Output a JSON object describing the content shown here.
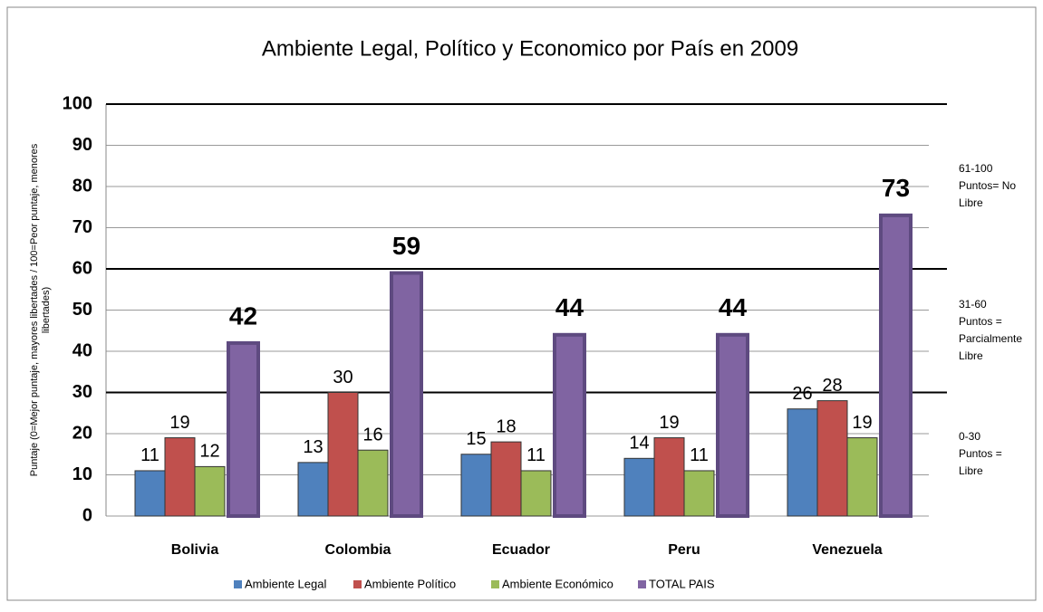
{
  "chart_data": {
    "type": "bar",
    "title": "Ambiente Legal, Político y Economico por País en 2009",
    "ylabel": [
      "Puntaje (0=Mejor puntaje, mayores libertades / 100=Peor puntaje, menores",
      "libertades)"
    ],
    "categories": [
      "Bolivia",
      "Colombia",
      "Ecuador",
      "Peru",
      "Venezuela"
    ],
    "series": [
      {
        "name": "Ambiente Legal",
        "color": "#4f81bd",
        "values": [
          11,
          13,
          15,
          14,
          26
        ]
      },
      {
        "name": "Ambiente Político",
        "color": "#c0504d",
        "values": [
          19,
          30,
          18,
          19,
          28
        ]
      },
      {
        "name": "Ambiente Económico",
        "color": "#9bbb59",
        "values": [
          12,
          16,
          11,
          11,
          19
        ]
      },
      {
        "name": "TOTAL PAIS",
        "color": "#8064a2",
        "values": [
          42,
          59,
          44,
          44,
          73
        ]
      }
    ],
    "ylim": [
      0,
      100
    ],
    "yticks": [
      0,
      10,
      20,
      30,
      40,
      50,
      60,
      70,
      80,
      90,
      100
    ],
    "grid": true,
    "zones": [
      {
        "limit": 30,
        "label": [
          "0-30",
          "Puntos =",
          "Libre"
        ]
      },
      {
        "limit": 60,
        "label": [
          "31-60",
          "Puntos =",
          "Parcialmente",
          "Libre"
        ]
      },
      {
        "limit": 100,
        "label": [
          "61-100",
          "Puntos= No",
          "Libre"
        ]
      }
    ],
    "legend": "bottom"
  }
}
